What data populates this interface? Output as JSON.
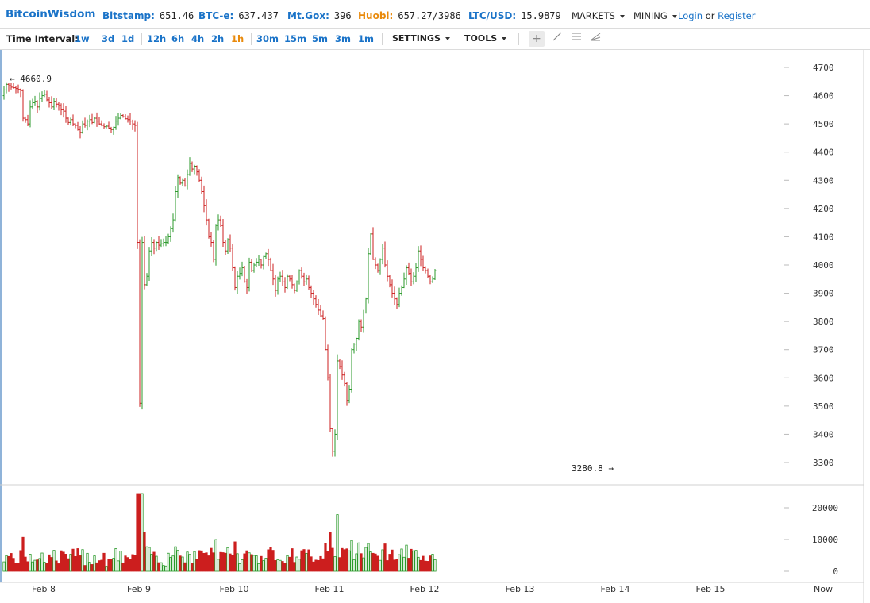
{
  "header": {
    "logo": "BitcoinWisdom",
    "tickers": [
      {
        "label": "Bitstamp:",
        "value": "651.46",
        "color": "#1a73c8"
      },
      {
        "label": "BTC-e:",
        "value": "637.437",
        "color": "#1a73c8"
      },
      {
        "label": "Mt.Gox:",
        "value": "396",
        "color": "#1a73c8"
      },
      {
        "label": "Huobi:",
        "value": "657.27/3986",
        "color": "#e98a0c"
      },
      {
        "label": "LTC/USD:",
        "value": "15.9879",
        "color": "#1a73c8"
      }
    ],
    "markets_label": "MARKETS",
    "mining_label": "MINING",
    "login_label": "Login",
    "or_label": "or",
    "register_label": "Register"
  },
  "toolbar": {
    "time_interval_label": "Time Interval:",
    "intervals": [
      "1w",
      "3d",
      "1d",
      "12h",
      "6h",
      "4h",
      "2h",
      "1h",
      "30m",
      "15m",
      "5m",
      "3m",
      "1m"
    ],
    "active_interval": "1h",
    "settings_label": "SETTINGS",
    "tools_label": "TOOLS",
    "tool_icons": [
      "crosshair-icon",
      "line-icon",
      "horizontal-lines-icon",
      "fan-icon"
    ]
  },
  "chart_data": [
    {
      "type": "candlestick",
      "title": "",
      "yticks": [
        4700,
        4600,
        4500,
        4400,
        4300,
        4200,
        4100,
        4000,
        3900,
        3800,
        3700,
        3600,
        3500,
        3400,
        3300
      ],
      "ylim": [
        3240,
        4720
      ],
      "xticks": [
        "Feb 8",
        "Feb 9",
        "Feb 10",
        "Feb 11",
        "Feb 12",
        "Feb 13",
        "Feb 14",
        "Feb 15",
        "Now"
      ],
      "high_label": "4660.9",
      "low_label": "3280.8",
      "colors": {
        "up": "#2b9a2b",
        "down": "#cc1f1f"
      },
      "close_series": [
        4620,
        4640,
        4635,
        4630,
        4628,
        4625,
        4622,
        4618,
        4520,
        4515,
        4500,
        4560,
        4575,
        4580,
        4560,
        4590,
        4600,
        4605,
        4585,
        4575,
        4560,
        4580,
        4570,
        4565,
        4550,
        4545,
        4520,
        4505,
        4515,
        4500,
        4495,
        4480,
        4470,
        4500,
        4495,
        4510,
        4515,
        4505,
        4520,
        4510,
        4500,
        4495,
        4490,
        4492,
        4485,
        4480,
        4488,
        4510,
        4520,
        4530,
        4525,
        4518,
        4515,
        4510,
        4500,
        4495,
        4080,
        3510,
        4080,
        3930,
        3960,
        4050,
        4080,
        4060,
        4080,
        4070,
        4075,
        4080,
        4080,
        4100,
        4130,
        4160,
        4260,
        4310,
        4290,
        4300,
        4280,
        4320,
        4360,
        4340,
        4350,
        4330,
        4300,
        4260,
        4210,
        4160,
        4100,
        4080,
        4020,
        4140,
        4160,
        4140,
        4080,
        4050,
        4090,
        4060,
        3990,
        3920,
        3960,
        3970,
        3990,
        3940,
        3920,
        4010,
        3980,
        4000,
        4010,
        4020,
        4000,
        4030,
        4040,
        4020,
        3980,
        3950,
        3910,
        3950,
        3960,
        3940,
        3920,
        3960,
        3950,
        3930,
        3910,
        3940,
        3980,
        3960,
        3940,
        3950,
        3920,
        3900,
        3880,
        3860,
        3840,
        3820,
        3810,
        3700,
        3600,
        3420,
        3340,
        3400,
        3660,
        3640,
        3610,
        3580,
        3520,
        3560,
        3700,
        3720,
        3740,
        3800,
        3780,
        3830,
        3880,
        4040,
        4110,
        4020,
        4000,
        3980,
        4020,
        4060,
        4000,
        3960,
        3930,
        3900,
        3880,
        3860,
        3900,
        3920,
        3950,
        3990,
        3970,
        3940,
        3960,
        3990,
        4050,
        4020,
        3990,
        3980,
        3960,
        3940,
        3950,
        3980
      ],
      "volume_yticks": [
        20000,
        10000,
        0
      ],
      "volume_ylim": [
        0,
        25000
      ]
    }
  ]
}
